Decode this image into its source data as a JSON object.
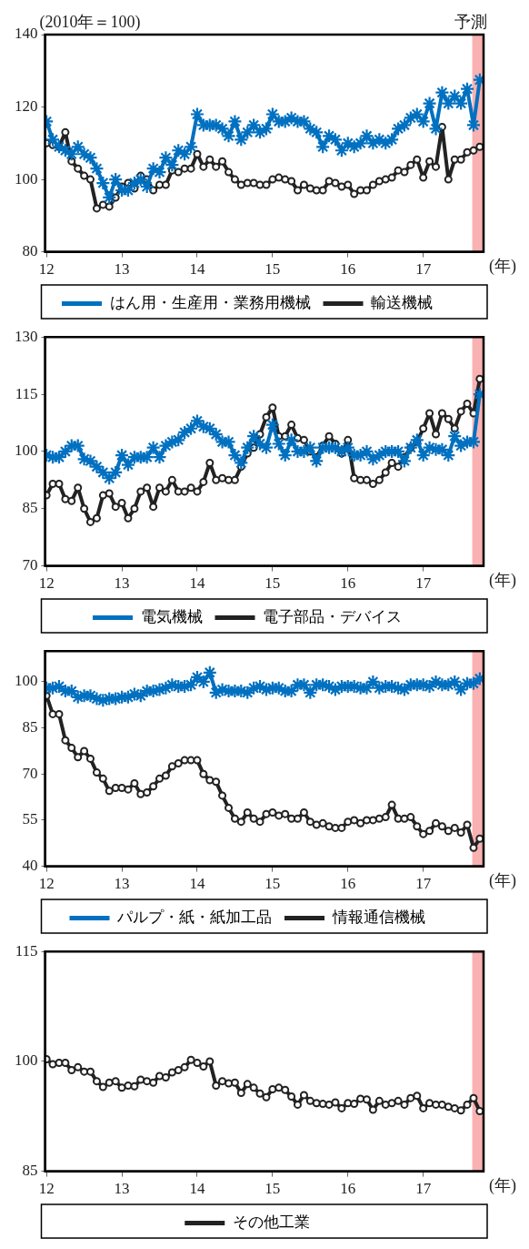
{
  "chart_data": [
    {
      "type": "line",
      "ylabel": "(2010年＝100)",
      "xlabel": "(年)",
      "legend": "bottom",
      "xlim": [
        11.98,
        17.8
      ],
      "xticks": [
        12,
        13,
        14,
        15,
        16,
        17
      ],
      "ylim": [
        80,
        140
      ],
      "yticks": [
        80,
        100,
        120,
        140
      ],
      "bands": [
        {
          "axis": "x",
          "from": 17.65,
          "to": 17.8,
          "label": "予測",
          "color": "#f9b1b1"
        }
      ],
      "x": [
        12,
        12.083,
        12.167,
        12.25,
        12.333,
        12.417,
        12.5,
        12.583,
        12.667,
        12.75,
        12.833,
        12.917,
        13,
        13.083,
        13.167,
        13.25,
        13.333,
        13.417,
        13.5,
        13.583,
        13.667,
        13.75,
        13.833,
        13.917,
        14,
        14.083,
        14.167,
        14.25,
        14.333,
        14.417,
        14.5,
        14.583,
        14.667,
        14.75,
        14.833,
        14.917,
        15,
        15.083,
        15.167,
        15.25,
        15.333,
        15.417,
        15.5,
        15.583,
        15.667,
        15.75,
        15.833,
        15.917,
        16,
        16.083,
        16.167,
        16.25,
        16.333,
        16.417,
        16.5,
        16.583,
        16.667,
        16.75,
        16.833,
        16.917,
        17,
        17.083,
        17.167,
        17.25,
        17.333,
        17.417,
        17.5,
        17.583,
        17.667,
        17.75
      ],
      "series": [
        {
          "name": "はん用・生産用・業務用機械",
          "color": "#0070c0",
          "marker": "cross",
          "values": [
            116,
            111,
            109,
            108,
            107,
            109,
            107,
            106,
            103,
            99,
            95,
            100,
            97,
            97,
            99,
            100,
            98,
            103,
            102,
            106,
            104,
            108,
            107,
            109,
            118,
            115,
            115,
            115,
            114,
            112,
            116,
            111,
            113,
            115,
            113,
            114,
            118,
            116,
            116,
            117,
            116,
            116,
            114,
            113,
            109,
            112,
            111,
            108,
            110,
            109,
            110,
            112,
            110,
            111,
            110,
            111,
            114,
            115,
            117,
            118,
            116,
            121,
            114,
            124,
            121,
            123,
            121,
            125,
            115,
            127.5
          ]
        },
        {
          "name": "輸送機械",
          "color": "#222222",
          "marker": "circle",
          "values": [
            110,
            109.5,
            109,
            113,
            105,
            103,
            101,
            100,
            92,
            93,
            92.5,
            95,
            98,
            99,
            97.5,
            101,
            100,
            97,
            98.5,
            98.5,
            102.5,
            102,
            103,
            103,
            107,
            103.5,
            105.5,
            103.5,
            105,
            102,
            100,
            98.5,
            99,
            99,
            98.5,
            98.5,
            100,
            100.5,
            100,
            99.5,
            97,
            98.5,
            97.5,
            97,
            97,
            99.5,
            99,
            98,
            98.5,
            96,
            97,
            97,
            98.5,
            99.5,
            100,
            100.5,
            102.5,
            102,
            104,
            105.5,
            100.5,
            105,
            103.5,
            114.5,
            100,
            105.5,
            105.5,
            107.5,
            108,
            109
          ]
        }
      ]
    },
    {
      "type": "line",
      "xlabel": "(年)",
      "legend": "bottom",
      "xlim": [
        11.98,
        17.8
      ],
      "xticks": [
        12,
        13,
        14,
        15,
        16,
        17
      ],
      "ylim": [
        70,
        130
      ],
      "yticks": [
        70,
        85,
        100,
        115,
        130
      ],
      "bands": [
        {
          "axis": "x",
          "from": 17.65,
          "to": 17.8,
          "color": "#f9b1b1"
        }
      ],
      "x": [
        12,
        12.083,
        12.167,
        12.25,
        12.333,
        12.417,
        12.5,
        12.583,
        12.667,
        12.75,
        12.833,
        12.917,
        13,
        13.083,
        13.167,
        13.25,
        13.333,
        13.417,
        13.5,
        13.583,
        13.667,
        13.75,
        13.833,
        13.917,
        14,
        14.083,
        14.167,
        14.25,
        14.333,
        14.417,
        14.5,
        14.583,
        14.667,
        14.75,
        14.833,
        14.917,
        15,
        15.083,
        15.167,
        15.25,
        15.333,
        15.417,
        15.5,
        15.583,
        15.667,
        15.75,
        15.833,
        15.917,
        16,
        16.083,
        16.167,
        16.25,
        16.333,
        16.417,
        16.5,
        16.583,
        16.667,
        16.75,
        16.833,
        16.917,
        17,
        17.083,
        17.167,
        17.25,
        17.333,
        17.417,
        17.5,
        17.583,
        17.667,
        17.75
      ],
      "series": [
        {
          "name": "電気機械",
          "color": "#0070c0",
          "marker": "cross",
          "values": [
            99,
            98.5,
            98.5,
            100,
            101.5,
            101.5,
            98,
            97.5,
            96,
            94.5,
            93,
            94.5,
            99,
            96.5,
            98.5,
            98.5,
            98.5,
            101,
            98.5,
            101.5,
            102.5,
            103,
            105,
            106,
            108,
            106.5,
            106,
            104.5,
            102.5,
            102.5,
            99,
            97,
            101,
            104,
            102,
            101,
            107,
            102,
            99,
            103,
            100,
            100,
            101,
            97.5,
            101,
            101,
            101,
            100,
            101,
            99,
            99,
            100,
            98,
            99,
            100,
            100,
            100,
            97.5,
            101,
            103,
            99,
            101,
            100.5,
            100.5,
            99,
            104,
            101.5,
            102.5,
            102.5,
            115
          ]
        },
        {
          "name": "電子部品・デバイス",
          "color": "#222222",
          "marker": "circle",
          "values": [
            88.5,
            91.5,
            91.5,
            87.5,
            87,
            90.5,
            85,
            81.5,
            82.5,
            88.5,
            89,
            85.5,
            86.5,
            82.5,
            85,
            89.5,
            90.5,
            85.5,
            90.5,
            89.5,
            92.5,
            89.5,
            89.5,
            90.5,
            89.5,
            92,
            97,
            92.5,
            93,
            92.5,
            92.5,
            96,
            99.5,
            101,
            104.5,
            109,
            111.5,
            104,
            104,
            107,
            103.5,
            103,
            100,
            98.5,
            101.5,
            104,
            102,
            99.5,
            103,
            93,
            92.5,
            92.5,
            91.5,
            92.5,
            94.5,
            97,
            96,
            98.5,
            101,
            102.5,
            106,
            110,
            104.5,
            110,
            108.5,
            106,
            110.5,
            112.5,
            110,
            119
          ]
        }
      ]
    },
    {
      "type": "line",
      "xlabel": "(年)",
      "legend": "bottom",
      "xlim": [
        11.98,
        17.8
      ],
      "xticks": [
        12,
        13,
        14,
        15,
        16,
        17
      ],
      "ylim": [
        40,
        110
      ],
      "yticks": [
        40,
        55,
        70,
        85,
        100
      ],
      "bands": [
        {
          "axis": "x",
          "from": 17.65,
          "to": 17.8,
          "color": "#f9b1b1"
        }
      ],
      "x": [
        12,
        12.083,
        12.167,
        12.25,
        12.333,
        12.417,
        12.5,
        12.583,
        12.667,
        12.75,
        12.833,
        12.917,
        13,
        13.083,
        13.167,
        13.25,
        13.333,
        13.417,
        13.5,
        13.583,
        13.667,
        13.75,
        13.833,
        13.917,
        14,
        14.083,
        14.167,
        14.25,
        14.333,
        14.417,
        14.5,
        14.583,
        14.667,
        14.75,
        14.833,
        14.917,
        15,
        15.083,
        15.167,
        15.25,
        15.333,
        15.417,
        15.5,
        15.583,
        15.667,
        15.75,
        15.833,
        15.917,
        16,
        16.083,
        16.167,
        16.25,
        16.333,
        16.417,
        16.5,
        16.583,
        16.667,
        16.75,
        16.833,
        16.917,
        17,
        17.083,
        17.167,
        17.25,
        17.333,
        17.417,
        17.5,
        17.583,
        17.667,
        17.75
      ],
      "series": [
        {
          "name": "パルプ・紙・紙加工品",
          "color": "#0070c0",
          "marker": "cross",
          "values": [
            98,
            98,
            98.5,
            97,
            97,
            95,
            95.5,
            95.5,
            94.5,
            94,
            94.5,
            94.5,
            95,
            95,
            96,
            95.5,
            97,
            97,
            97.5,
            98,
            99,
            98.5,
            98.5,
            99,
            101.5,
            100,
            103,
            96.5,
            97.5,
            97,
            97,
            97,
            96.5,
            98,
            98.5,
            97.5,
            98,
            98,
            97,
            97,
            99,
            99,
            96.5,
            99,
            99,
            98.5,
            97.5,
            98.5,
            98.5,
            98.5,
            98,
            98,
            100,
            98,
            98.5,
            98.5,
            98,
            97.5,
            99,
            99,
            99,
            98.5,
            100,
            99,
            99,
            100,
            97.5,
            99.5,
            99.5,
            101
          ]
        },
        {
          "name": "情報通信機械",
          "color": "#222222",
          "marker": "circle",
          "values": [
            95.5,
            89.5,
            89.5,
            81,
            78.5,
            75.5,
            77.5,
            75,
            70.5,
            68.5,
            64.5,
            65.5,
            65.5,
            65,
            67,
            63.5,
            64,
            66,
            68.5,
            69.5,
            72.5,
            73.5,
            74.5,
            74.5,
            74.5,
            70,
            68,
            67.5,
            63,
            59,
            55.5,
            54.5,
            57.5,
            55.5,
            54.5,
            57,
            57.5,
            56.5,
            57,
            55.5,
            55.5,
            57.5,
            54.5,
            53.5,
            54,
            53,
            52.5,
            52.5,
            54.5,
            55,
            54,
            55,
            55,
            55.5,
            56,
            60,
            55.5,
            55.5,
            56,
            53,
            50.5,
            51.5,
            54,
            53,
            51.5,
            52.5,
            51,
            53.5,
            46,
            49
          ]
        }
      ]
    },
    {
      "type": "line",
      "xlabel": "(年)",
      "legend": "bottom",
      "xlim": [
        11.98,
        17.8
      ],
      "xticks": [
        12,
        13,
        14,
        15,
        16,
        17
      ],
      "ylim": [
        85,
        115
      ],
      "yticks": [
        85,
        100,
        115
      ],
      "bands": [
        {
          "axis": "x",
          "from": 17.65,
          "to": 17.8,
          "color": "#f9b1b1"
        }
      ],
      "x": [
        12,
        12.083,
        12.167,
        12.25,
        12.333,
        12.417,
        12.5,
        12.583,
        12.667,
        12.75,
        12.833,
        12.917,
        13,
        13.083,
        13.167,
        13.25,
        13.333,
        13.417,
        13.5,
        13.583,
        13.667,
        13.75,
        13.833,
        13.917,
        14,
        14.083,
        14.167,
        14.25,
        14.333,
        14.417,
        14.5,
        14.583,
        14.667,
        14.75,
        14.833,
        14.917,
        15,
        15.083,
        15.167,
        15.25,
        15.333,
        15.417,
        15.5,
        15.583,
        15.667,
        15.75,
        15.833,
        15.917,
        16,
        16.083,
        16.167,
        16.25,
        16.333,
        16.417,
        16.5,
        16.583,
        16.667,
        16.75,
        16.833,
        16.917,
        17,
        17.083,
        17.167,
        17.25,
        17.333,
        17.417,
        17.5,
        17.583,
        17.667,
        17.75
      ],
      "series": [
        {
          "name": "その他工業",
          "color": "#222222",
          "marker": "circle",
          "values": [
            100.3,
            99.6,
            99.8,
            99.8,
            98.8,
            99.2,
            98.6,
            98.6,
            97.3,
            96.5,
            97.1,
            97.3,
            96.4,
            96.7,
            96.6,
            97.5,
            97.3,
            97.1,
            98,
            97.8,
            98.5,
            98.8,
            99.2,
            100.2,
            99.8,
            99.3,
            100,
            96.7,
            97.3,
            97,
            97.1,
            95.7,
            96.9,
            96.4,
            95.6,
            95.1,
            96.2,
            96.4,
            96.1,
            95.2,
            94.1,
            95.4,
            94.6,
            94.3,
            94.2,
            94.1,
            94.4,
            93.6,
            94.3,
            94.2,
            94.9,
            94.8,
            93.4,
            94.6,
            94.1,
            94.3,
            94.6,
            94.1,
            95,
            95.3,
            93.6,
            94.3,
            94.1,
            94.1,
            93.8,
            93.6,
            93.3,
            94.1,
            95,
            93.2
          ]
        }
      ]
    }
  ]
}
